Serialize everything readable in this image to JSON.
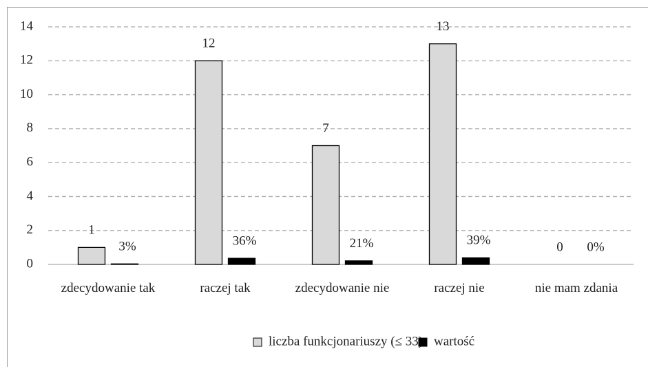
{
  "chart_data": {
    "type": "bar",
    "categories": [
      "zdecydowanie tak",
      "raczej tak",
      "zdecydowanie nie",
      "raczej nie",
      "nie mam zdania"
    ],
    "series": [
      {
        "name": "liczba funkcjonariuszy (≤ 33)",
        "color": "#d9d9d9",
        "values": [
          1,
          12,
          7,
          13,
          0
        ]
      },
      {
        "name": "wartość",
        "color": "#000000",
        "values": [
          0.03,
          0.36,
          0.21,
          0.39,
          0
        ],
        "value_labels": [
          "3%",
          "36%",
          "21%",
          "39%",
          "0%"
        ]
      }
    ],
    "ylim": [
      0,
      14
    ],
    "yticks": [
      0,
      2,
      4,
      6,
      8,
      10,
      12,
      14
    ],
    "grid": true,
    "legend": "bottom"
  }
}
